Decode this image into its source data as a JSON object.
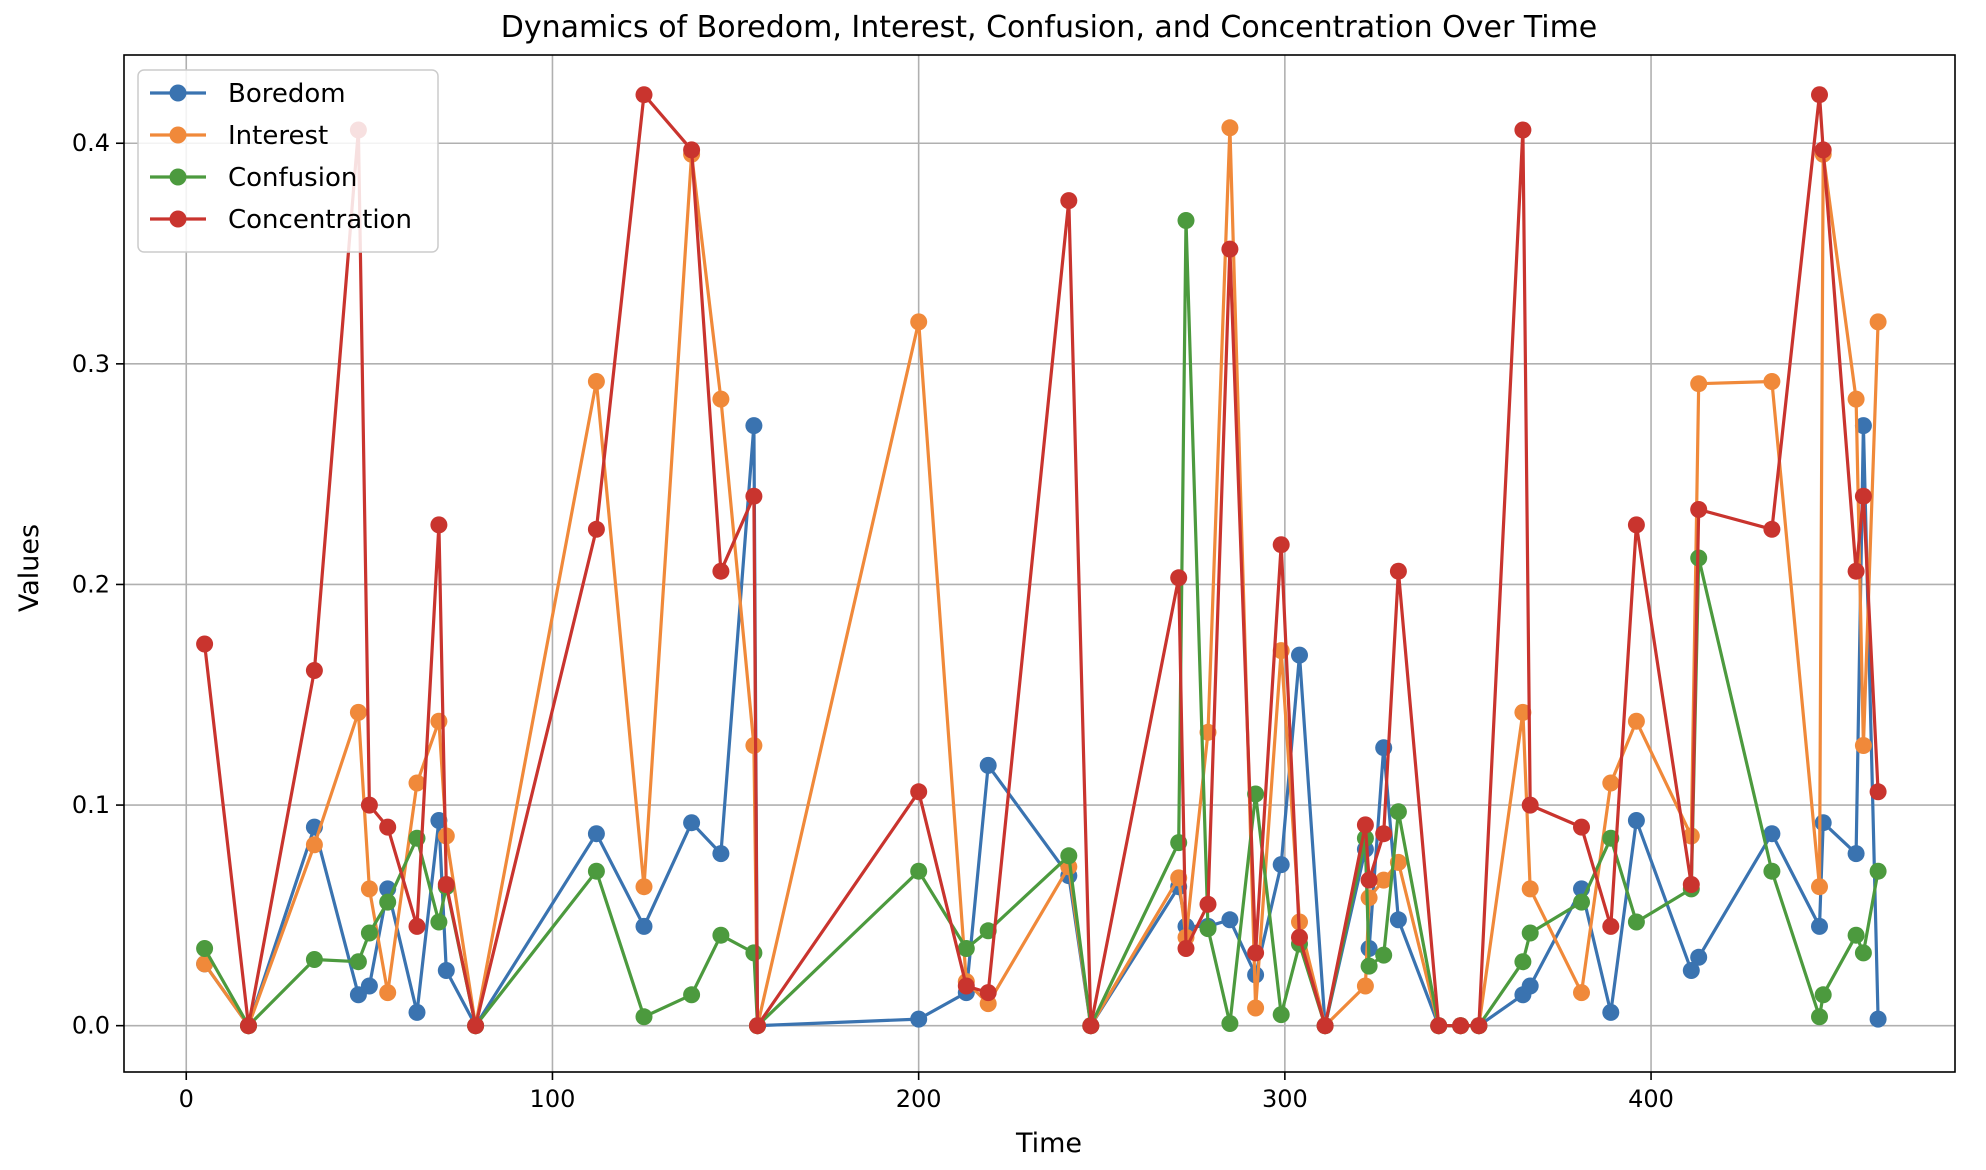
{
  "chart_data": {
    "type": "line",
    "title": "Dynamics of Boredom, Interest, Confusion, and Concentration Over Time",
    "xlabel": "Time",
    "ylabel": "Values",
    "xlim": [
      -17,
      483
    ],
    "ylim": [
      -0.021,
      0.44
    ],
    "xticks": [
      0,
      100,
      200,
      300,
      400
    ],
    "xtick_labels": [
      "0",
      "100",
      "200",
      "300",
      "400"
    ],
    "yticks": [
      0.0,
      0.1,
      0.2,
      0.3,
      0.4
    ],
    "ytick_labels": [
      "0.0",
      "0.1",
      "0.2",
      "0.3",
      "0.4"
    ],
    "grid": true,
    "legend_position": "top-left",
    "series": [
      {
        "name": "Boredom",
        "color": "#3a73b0",
        "points": [
          [
            5,
            0.028
          ],
          [
            17,
            0.0
          ],
          [
            35,
            0.09
          ],
          [
            47,
            0.014
          ],
          [
            50,
            0.018
          ],
          [
            55,
            0.062
          ],
          [
            63,
            0.006
          ],
          [
            69,
            0.093
          ],
          [
            71,
            0.025
          ],
          [
            79,
            0.0
          ],
          [
            112,
            0.087
          ],
          [
            125,
            0.045
          ],
          [
            138,
            0.092
          ],
          [
            146,
            0.078
          ],
          [
            155,
            0.272
          ],
          [
            156,
            0.0
          ],
          [
            200,
            0.003
          ],
          [
            213,
            0.015
          ],
          [
            219,
            0.118
          ],
          [
            241,
            0.068
          ],
          [
            247,
            0.0
          ],
          [
            271,
            0.063
          ],
          [
            273,
            0.045
          ],
          [
            279,
            0.045
          ],
          [
            285,
            0.048
          ],
          [
            292,
            0.023
          ],
          [
            299,
            0.073
          ],
          [
            304,
            0.168
          ],
          [
            311,
            0.0
          ],
          [
            322,
            0.08
          ],
          [
            323,
            0.035
          ],
          [
            327,
            0.126
          ],
          [
            331,
            0.048
          ],
          [
            342,
            0.0
          ],
          [
            348,
            0.0
          ],
          [
            353,
            0.0
          ],
          [
            365,
            0.014
          ],
          [
            367,
            0.018
          ],
          [
            381,
            0.062
          ],
          [
            389,
            0.006
          ],
          [
            396,
            0.093
          ],
          [
            411,
            0.025
          ],
          [
            413,
            0.031
          ],
          [
            433,
            0.087
          ],
          [
            446,
            0.045
          ],
          [
            447,
            0.092
          ],
          [
            456,
            0.078
          ],
          [
            458,
            0.272
          ],
          [
            462,
            0.003
          ]
        ]
      },
      {
        "name": "Interest",
        "color": "#f0893a",
        "points": [
          [
            5,
            0.028
          ],
          [
            17,
            0.0
          ],
          [
            35,
            0.082
          ],
          [
            47,
            0.142
          ],
          [
            50,
            0.062
          ],
          [
            55,
            0.015
          ],
          [
            63,
            0.11
          ],
          [
            69,
            0.138
          ],
          [
            71,
            0.086
          ],
          [
            79,
            0.0
          ],
          [
            112,
            0.292
          ],
          [
            125,
            0.063
          ],
          [
            138,
            0.395
          ],
          [
            146,
            0.284
          ],
          [
            155,
            0.127
          ],
          [
            156,
            0.0
          ],
          [
            200,
            0.319
          ],
          [
            213,
            0.02
          ],
          [
            219,
            0.01
          ],
          [
            241,
            0.072
          ],
          [
            247,
            0.0
          ],
          [
            271,
            0.067
          ],
          [
            273,
            0.04
          ],
          [
            279,
            0.133
          ],
          [
            285,
            0.407
          ],
          [
            292,
            0.008
          ],
          [
            299,
            0.17
          ],
          [
            304,
            0.047
          ],
          [
            311,
            0.0
          ],
          [
            322,
            0.018
          ],
          [
            323,
            0.058
          ],
          [
            327,
            0.066
          ],
          [
            331,
            0.074
          ],
          [
            342,
            0.0
          ],
          [
            348,
            0.0
          ],
          [
            353,
            0.0
          ],
          [
            365,
            0.142
          ],
          [
            367,
            0.062
          ],
          [
            381,
            0.015
          ],
          [
            389,
            0.11
          ],
          [
            396,
            0.138
          ],
          [
            411,
            0.086
          ],
          [
            413,
            0.291
          ],
          [
            433,
            0.292
          ],
          [
            446,
            0.063
          ],
          [
            447,
            0.395
          ],
          [
            456,
            0.284
          ],
          [
            458,
            0.127
          ],
          [
            462,
            0.319
          ]
        ]
      },
      {
        "name": "Confusion",
        "color": "#4c9a3e",
        "points": [
          [
            5,
            0.035
          ],
          [
            17,
            0.0
          ],
          [
            35,
            0.03
          ],
          [
            47,
            0.029
          ],
          [
            50,
            0.042
          ],
          [
            55,
            0.056
          ],
          [
            63,
            0.085
          ],
          [
            69,
            0.047
          ],
          [
            71,
            0.063
          ],
          [
            79,
            0.0
          ],
          [
            112,
            0.07
          ],
          [
            125,
            0.004
          ],
          [
            138,
            0.014
          ],
          [
            146,
            0.041
          ],
          [
            155,
            0.033
          ],
          [
            156,
            0.0
          ],
          [
            200,
            0.07
          ],
          [
            213,
            0.035
          ],
          [
            219,
            0.043
          ],
          [
            241,
            0.077
          ],
          [
            247,
            0.0
          ],
          [
            271,
            0.083
          ],
          [
            273,
            0.365
          ],
          [
            279,
            0.044
          ],
          [
            285,
            0.001
          ],
          [
            292,
            0.105
          ],
          [
            299,
            0.005
          ],
          [
            304,
            0.037
          ],
          [
            311,
            0.0
          ],
          [
            322,
            0.085
          ],
          [
            323,
            0.027
          ],
          [
            327,
            0.032
          ],
          [
            331,
            0.097
          ],
          [
            342,
            0.0
          ],
          [
            348,
            0.0
          ],
          [
            353,
            0.0
          ],
          [
            365,
            0.029
          ],
          [
            367,
            0.042
          ],
          [
            381,
            0.056
          ],
          [
            389,
            0.085
          ],
          [
            396,
            0.047
          ],
          [
            411,
            0.062
          ],
          [
            413,
            0.212
          ],
          [
            433,
            0.07
          ],
          [
            446,
            0.004
          ],
          [
            447,
            0.014
          ],
          [
            456,
            0.041
          ],
          [
            458,
            0.033
          ],
          [
            462,
            0.07
          ]
        ]
      },
      {
        "name": "Concentration",
        "color": "#c9342e",
        "points": [
          [
            5,
            0.173
          ],
          [
            17,
            0.0
          ],
          [
            35,
            0.161
          ],
          [
            47,
            0.406
          ],
          [
            50,
            0.1
          ],
          [
            55,
            0.09
          ],
          [
            63,
            0.045
          ],
          [
            69,
            0.227
          ],
          [
            71,
            0.064
          ],
          [
            79,
            0.0
          ],
          [
            112,
            0.225
          ],
          [
            125,
            0.422
          ],
          [
            138,
            0.397
          ],
          [
            146,
            0.206
          ],
          [
            155,
            0.24
          ],
          [
            156,
            0.0
          ],
          [
            200,
            0.106
          ],
          [
            213,
            0.018
          ],
          [
            219,
            0.015
          ],
          [
            241,
            0.374
          ],
          [
            247,
            0.0
          ],
          [
            271,
            0.203
          ],
          [
            273,
            0.035
          ],
          [
            279,
            0.055
          ],
          [
            285,
            0.352
          ],
          [
            292,
            0.033
          ],
          [
            299,
            0.218
          ],
          [
            304,
            0.04
          ],
          [
            311,
            0.0
          ],
          [
            322,
            0.091
          ],
          [
            323,
            0.066
          ],
          [
            327,
            0.087
          ],
          [
            331,
            0.206
          ],
          [
            342,
            0.0
          ],
          [
            348,
            0.0
          ],
          [
            353,
            0.0
          ],
          [
            365,
            0.406
          ],
          [
            367,
            0.1
          ],
          [
            381,
            0.09
          ],
          [
            389,
            0.045
          ],
          [
            396,
            0.227
          ],
          [
            411,
            0.064
          ],
          [
            413,
            0.234
          ],
          [
            433,
            0.225
          ],
          [
            446,
            0.422
          ],
          [
            447,
            0.397
          ],
          [
            456,
            0.206
          ],
          [
            458,
            0.24
          ],
          [
            462,
            0.106
          ]
        ]
      }
    ]
  }
}
